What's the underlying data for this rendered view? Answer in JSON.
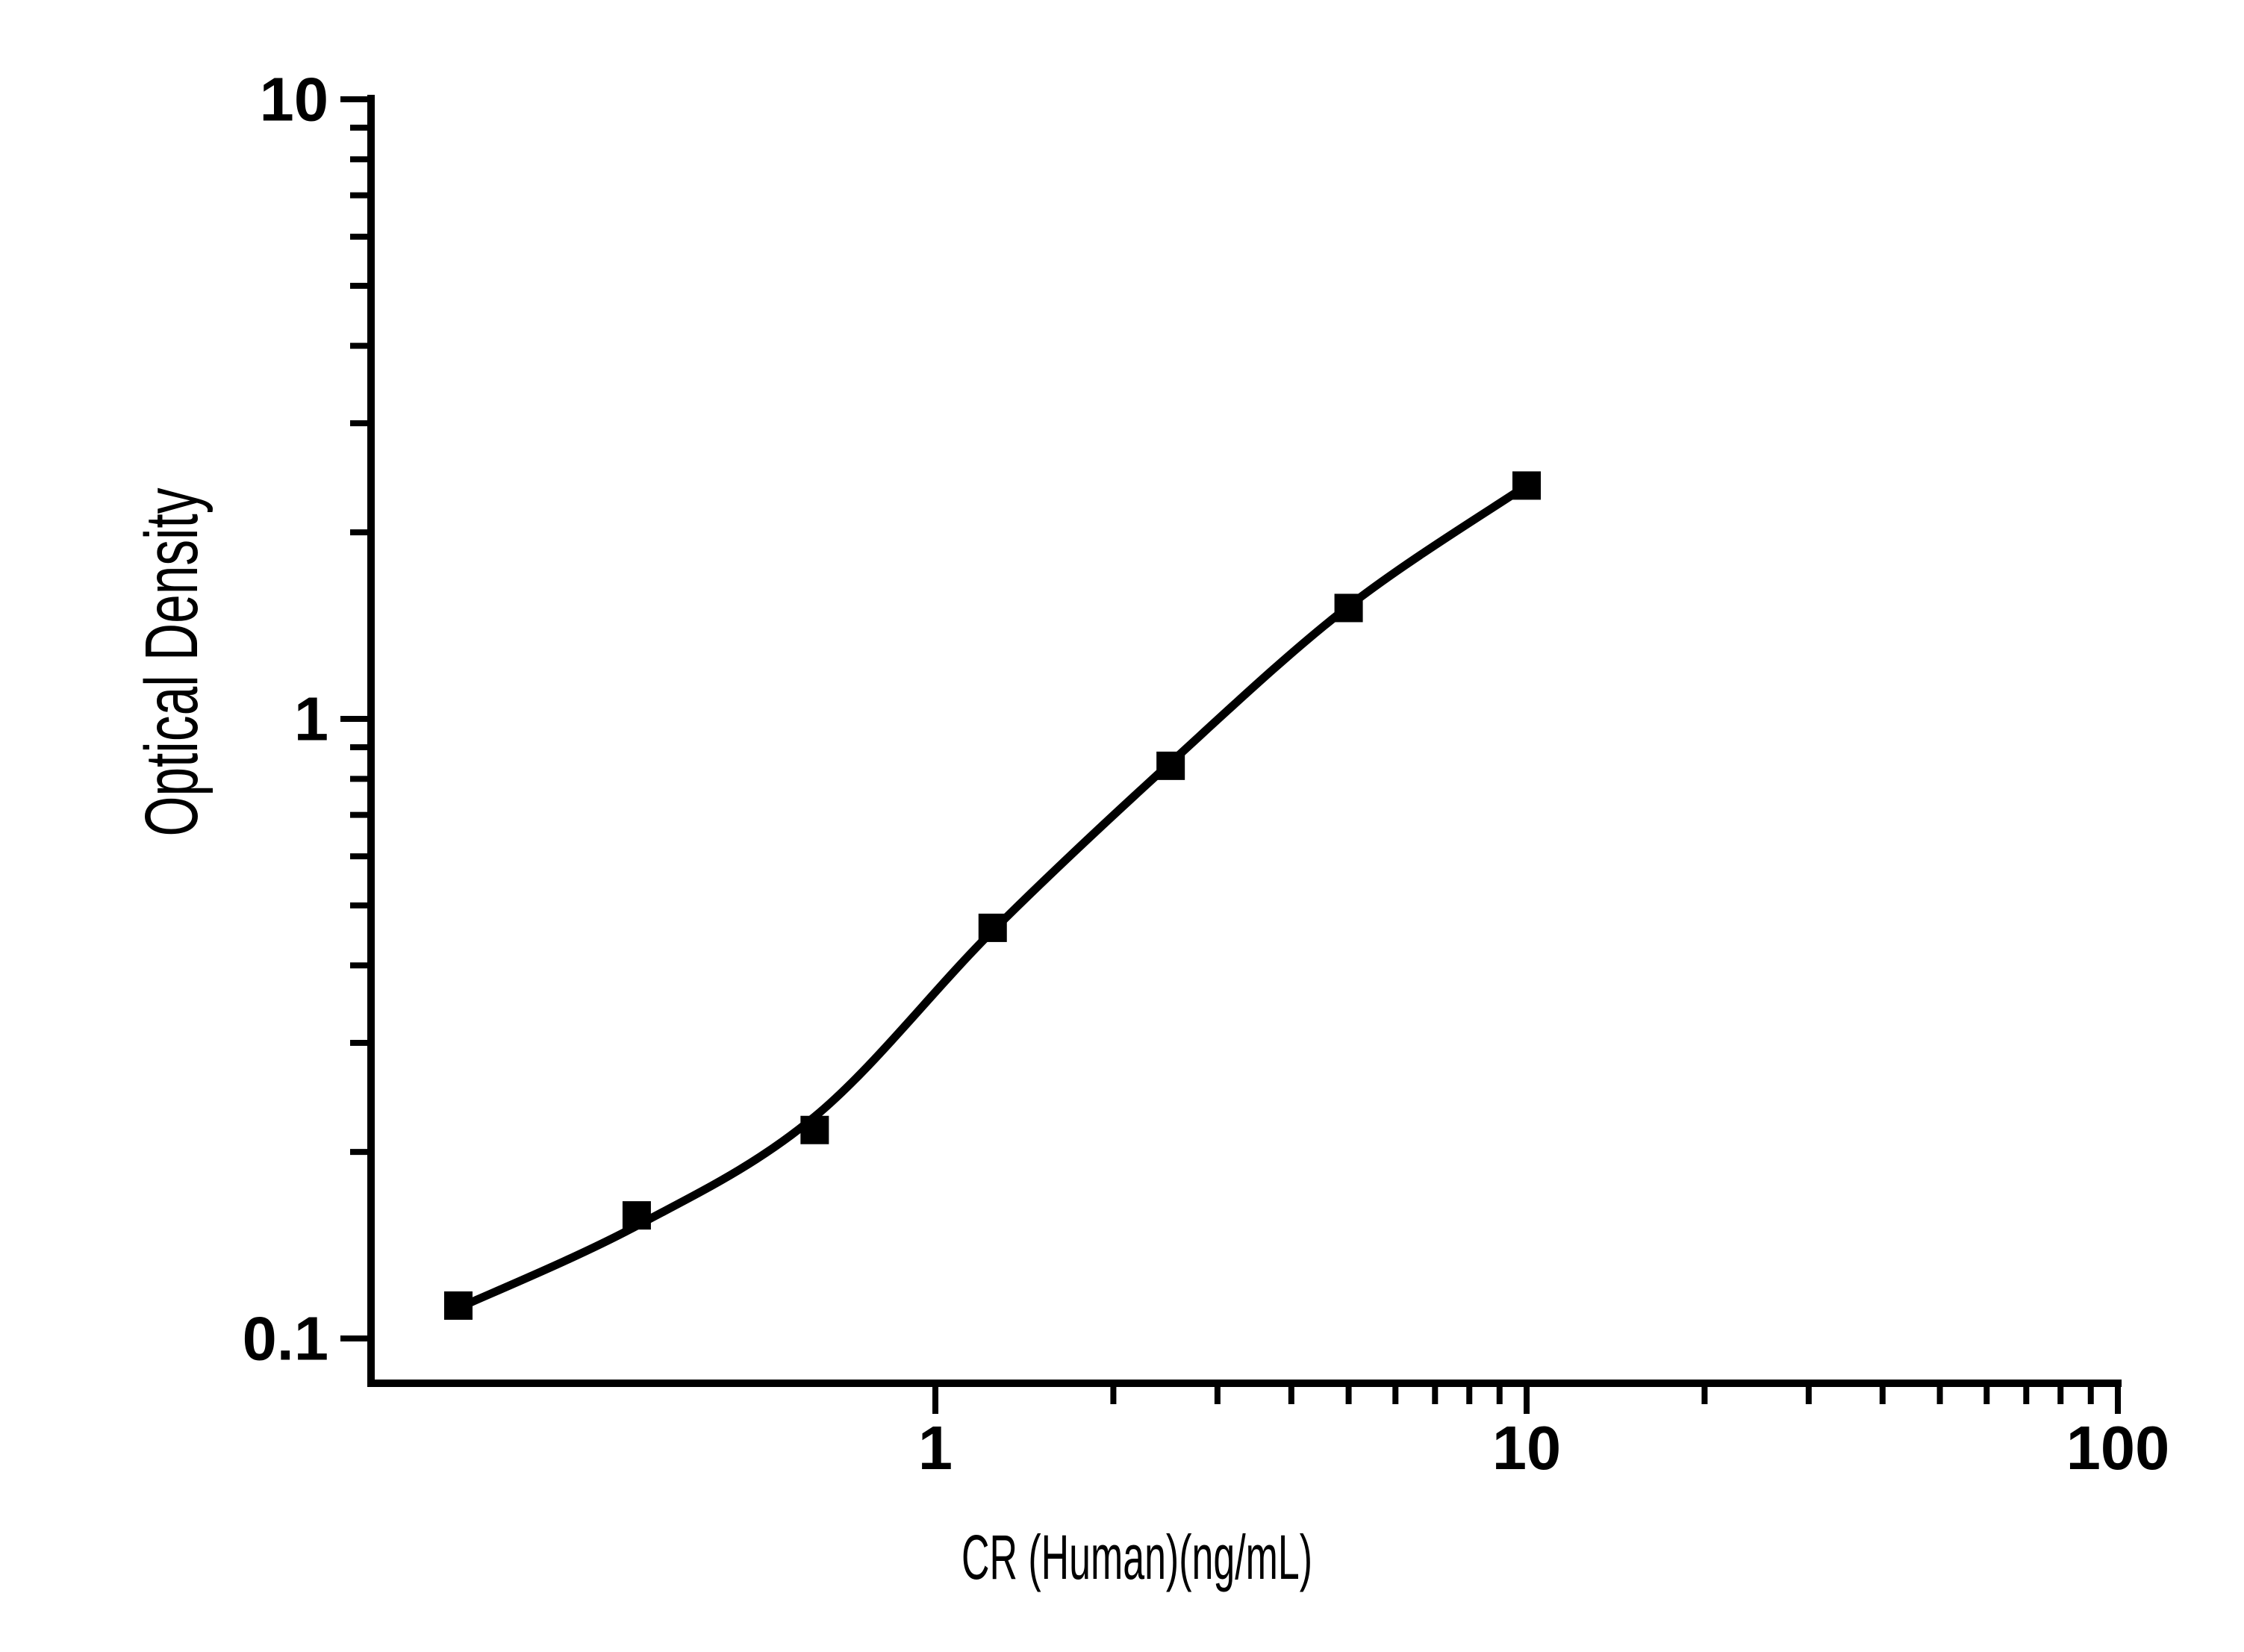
{
  "figure": {
    "background_color": "#ffffff",
    "foreground_color": "#000000"
  },
  "chart_data": {
    "type": "scatter",
    "subtype": "elisa-standard-curve-with-smooth-fit-line",
    "title": "",
    "xlabel": "CR (Human)(ng/mL)",
    "ylabel": "Optical Density",
    "x_scale": "log",
    "y_scale": "log",
    "xlim": [
      0.11,
      100
    ],
    "ylim": [
      0.085,
      10
    ],
    "grid": false,
    "legend": false,
    "points": {
      "x_ng_per_mL": [
        0.156,
        0.3125,
        0.625,
        1.25,
        2.5,
        5,
        10
      ],
      "od": [
        0.113,
        0.158,
        0.217,
        0.46,
        0.84,
        1.51,
        2.38
      ]
    },
    "fit_curve_od": [
      0.112,
      0.152,
      0.228,
      0.455,
      0.85,
      1.52,
      2.38
    ],
    "x_axis": {
      "major_ticks": [
        1,
        10,
        100
      ],
      "major_tick_labels": [
        "1",
        "10",
        "100"
      ],
      "minor_ticks": [
        2,
        3,
        4,
        5,
        6,
        7,
        8,
        9,
        20,
        30,
        40,
        50,
        60,
        70,
        80,
        90
      ],
      "ticks_direction": "out"
    },
    "y_axis": {
      "major_ticks": [
        10,
        1,
        0.1
      ],
      "major_tick_labels": [
        "10",
        "1",
        "0.1"
      ],
      "minor_ticks": [
        9,
        8,
        7,
        6,
        5,
        4,
        3,
        2,
        0.9,
        0.8,
        0.7,
        0.6,
        0.5,
        0.4,
        0.3,
        0.2
      ],
      "ticks_direction": "out"
    },
    "marker": {
      "shape": "square",
      "color": "#000000"
    },
    "line": {
      "color": "#000000"
    }
  }
}
